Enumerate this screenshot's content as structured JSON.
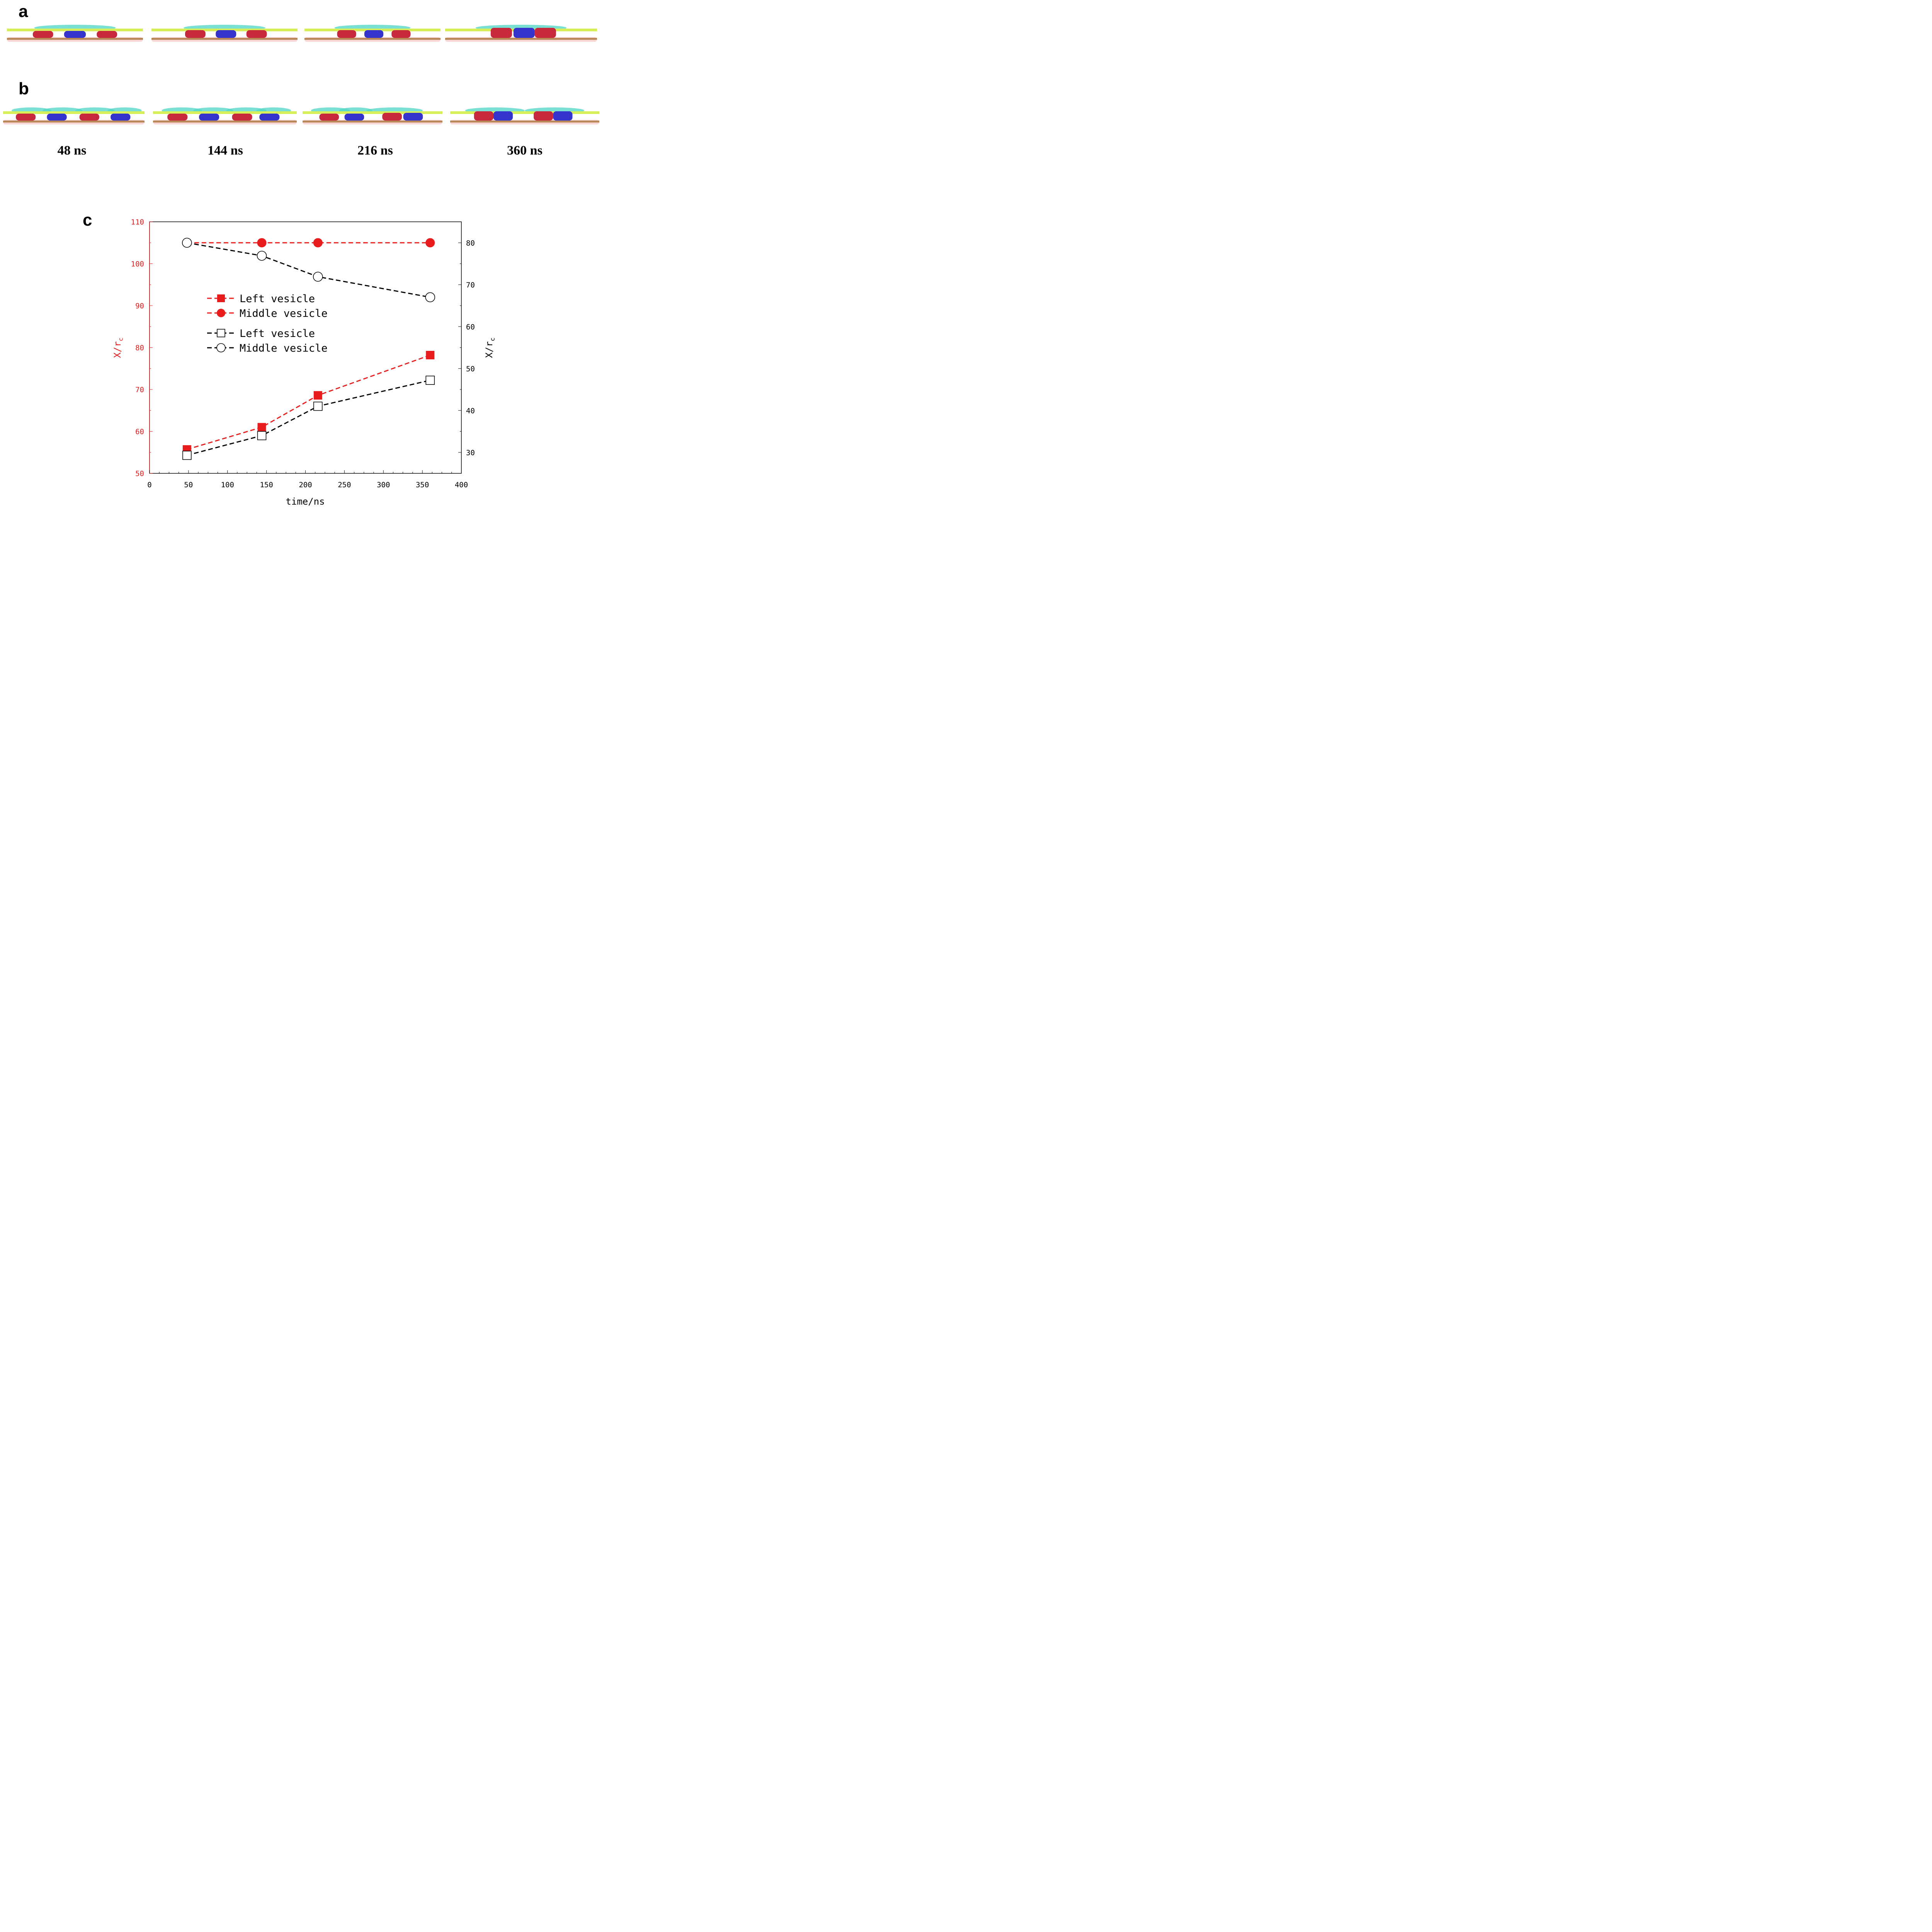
{
  "panels": {
    "a_label": "a",
    "b_label": "b",
    "c_label": "c",
    "time_labels": [
      "48 ns",
      "144 ns",
      "216 ns",
      "360 ns"
    ],
    "colors": {
      "upper_membrane": "#d8ee58",
      "upper_cap": "#58d8c8",
      "lower_membrane": "#b88858",
      "lower_glow": "#f4b4b4",
      "vesicle_red": "#c8283c",
      "vesicle_blue": "#3434cc"
    }
  },
  "chart_data": {
    "type": "line",
    "x": [
      48,
      144,
      216,
      360
    ],
    "xlabel": "time/ns",
    "xlim": [
      0,
      400
    ],
    "xticks": [
      0,
      50,
      100,
      150,
      200,
      250,
      300,
      350,
      400
    ],
    "ylabel_left": "X/r",
    "ylabel_left_sub": "c",
    "ylim_left": [
      50,
      110
    ],
    "yticks_left": [
      50,
      60,
      70,
      80,
      90,
      100,
      110
    ],
    "ylabel_right": "X/r",
    "ylabel_right_sub": "c",
    "ylim_right": [
      25,
      85
    ],
    "yticks_right": [
      30,
      40,
      50,
      60,
      70,
      80
    ],
    "series": [
      {
        "name": "Left vesicle",
        "axis": "left",
        "color": "#e81c1c",
        "marker": "filled-square",
        "values": [
          55.7,
          61.0,
          68.6,
          78.2
        ]
      },
      {
        "name": "Middle vesicle",
        "axis": "left",
        "color": "#e81c1c",
        "marker": "filled-circle",
        "values": [
          105,
          105,
          105,
          105
        ]
      },
      {
        "name": "Left vesicle",
        "axis": "right",
        "color": "#000000",
        "marker": "open-square",
        "values": [
          29.3,
          34.0,
          41.0,
          47.2
        ]
      },
      {
        "name": "Middle vesicle",
        "axis": "right",
        "color": "#000000",
        "marker": "open-circle",
        "values": [
          80.0,
          76.9,
          71.9,
          67.0
        ]
      }
    ],
    "legend_position": "center-left",
    "grid": false
  }
}
